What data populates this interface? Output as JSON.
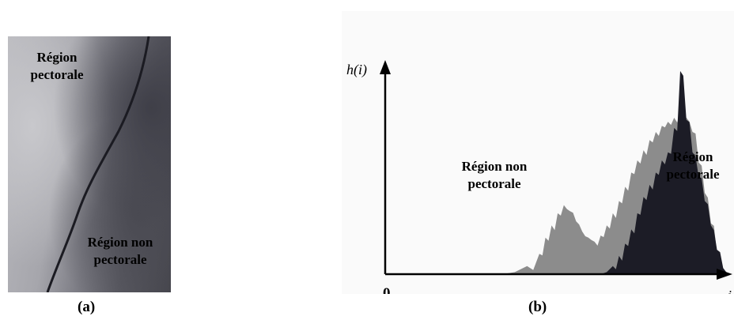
{
  "panel_a": {
    "label_top": [
      "Région",
      "pectorale"
    ],
    "label_bottom": [
      "Région non",
      "pectorale"
    ],
    "caption": "(a)"
  },
  "panel_b": {
    "caption": "(b)",
    "annotation_left": [
      "Région non",
      "pectorale"
    ],
    "annotation_right": [
      "Région",
      "pectorale"
    ]
  },
  "chart_data": {
    "type": "area",
    "ylabel": "h(i)",
    "xlabel": "i",
    "x_origin_label": "0",
    "grid": false,
    "legend": "none",
    "x": [
      0,
      10,
      20,
      30,
      40,
      50,
      60,
      70,
      80,
      90,
      100,
      105,
      110,
      115,
      120,
      125,
      130,
      135,
      140,
      145,
      150,
      155,
      160,
      165,
      170,
      175,
      180,
      185,
      190,
      195,
      200,
      205,
      210,
      215,
      220,
      225,
      230,
      235,
      240,
      245,
      250,
      255
    ],
    "series": [
      {
        "color": "#8c8c8c",
        "values": [
          0,
          0,
          0,
          0,
          0,
          0,
          0,
          0,
          1,
          4,
          10,
          18,
          24,
          30,
          34,
          31,
          26,
          21,
          18,
          16,
          19,
          24,
          30,
          36,
          43,
          50,
          56,
          61,
          66,
          70,
          73,
          75,
          77,
          79,
          77,
          70,
          55,
          40,
          25,
          10,
          2,
          0
        ]
      },
      {
        "color": "#1c1c26",
        "values": [
          0,
          0,
          0,
          0,
          0,
          0,
          0,
          0,
          0,
          0,
          0,
          0,
          0,
          0,
          0,
          0,
          0,
          0,
          0,
          0,
          0,
          1,
          4,
          9,
          15,
          22,
          30,
          38,
          44,
          50,
          56,
          60,
          72,
          100,
          76,
          60,
          48,
          36,
          24,
          12,
          3,
          0
        ]
      }
    ],
    "xlim": [
      0,
      255
    ],
    "ylim": [
      0,
      105
    ]
  }
}
